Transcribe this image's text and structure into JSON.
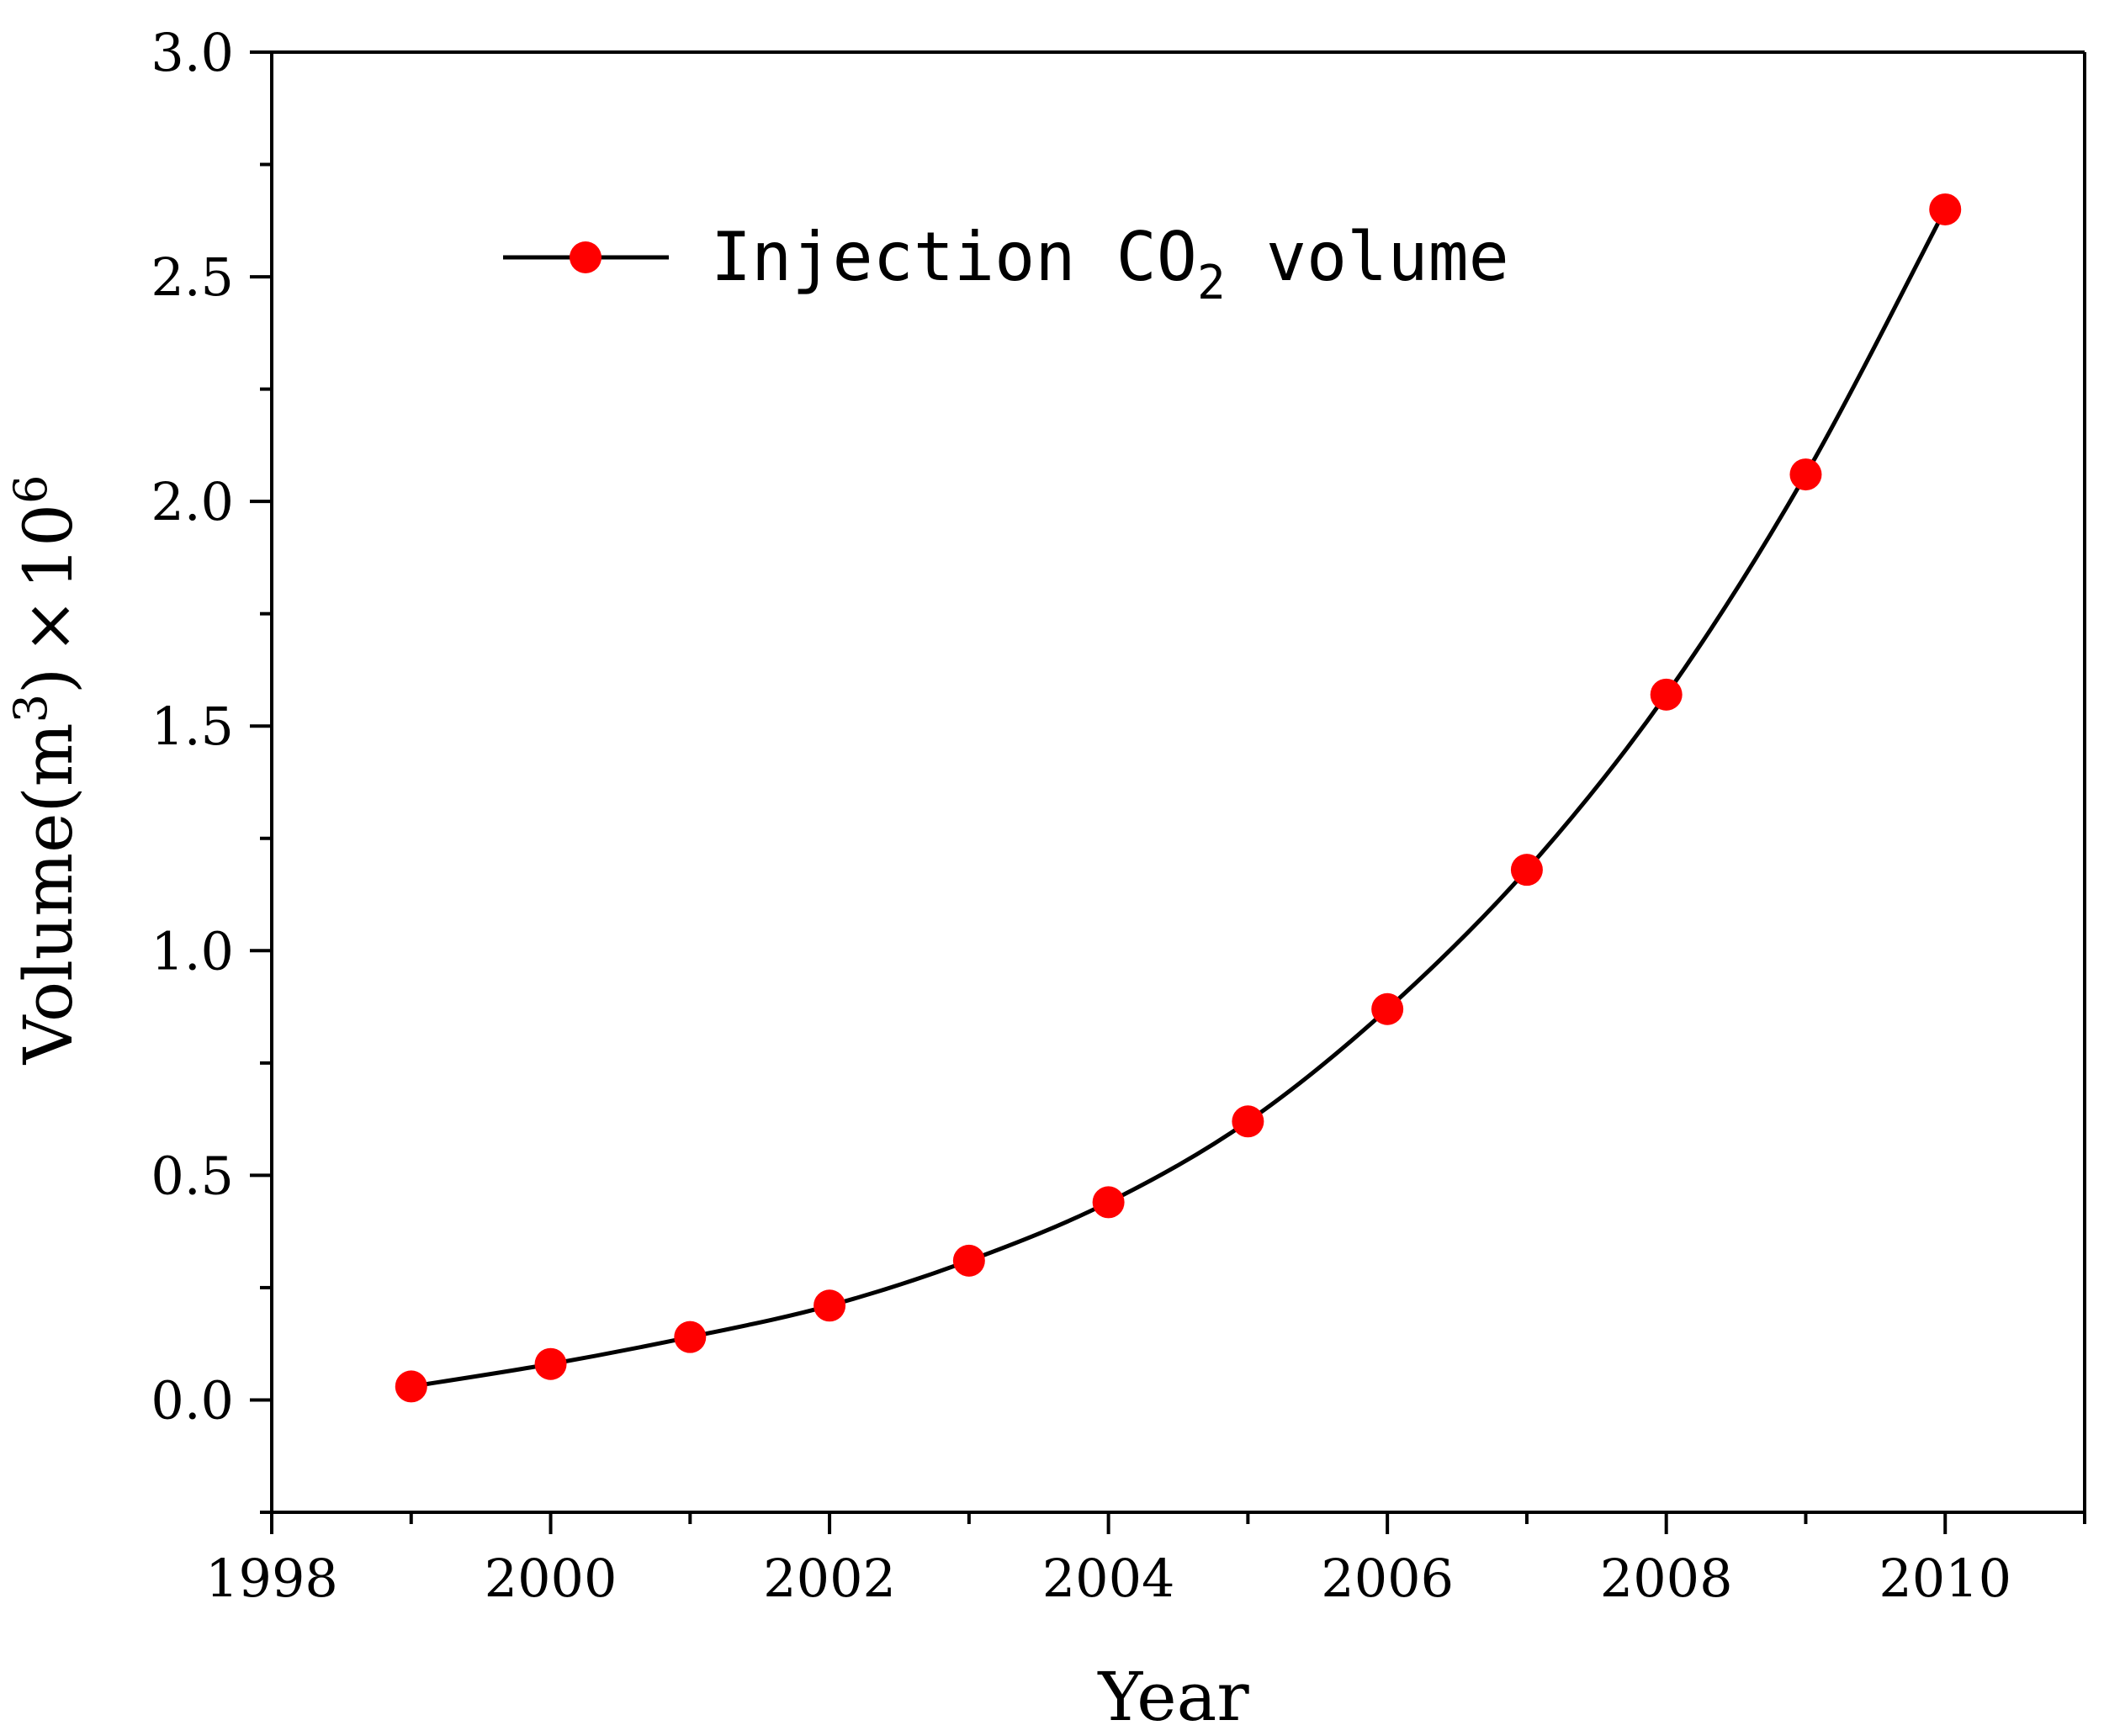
{
  "chart_data": {
    "type": "line",
    "title": "",
    "xlabel": "Year",
    "ylabel": {
      "prefix": "Volume(m",
      "sup": "3",
      "mid": ")",
      "times": "×",
      "base": "10",
      "exp": "6"
    },
    "xlim": [
      1998,
      2011
    ],
    "ylim": [
      -0.25,
      3.0
    ],
    "xticks": [
      1998,
      2000,
      2002,
      2004,
      2006,
      2008,
      2010
    ],
    "xtick_labels": [
      "1998",
      "2000",
      "2002",
      "2004",
      "2006",
      "2008",
      "2010"
    ],
    "yticks": [
      0.0,
      0.5,
      1.0,
      1.5,
      2.0,
      2.5,
      3.0
    ],
    "ytick_labels": [
      "0.0",
      "0.5",
      "1.0",
      "1.5",
      "2.0",
      "2.5",
      "3.0"
    ],
    "legend": {
      "position": "top-left",
      "prefix": "Injection CO",
      "sub": "2",
      "suffix": " volume"
    },
    "series": [
      {
        "name": "Injection CO2 volume",
        "line_color": "#000000",
        "marker_color": "#ff0000",
        "x": [
          1999,
          2000,
          2001,
          2002,
          2003,
          2004,
          2005,
          2006,
          2007,
          2008,
          2009,
          2010
        ],
        "values": [
          0.03,
          0.08,
          0.14,
          0.21,
          0.31,
          0.44,
          0.62,
          0.87,
          1.18,
          1.57,
          2.06,
          2.65
        ]
      }
    ],
    "grid": false
  }
}
